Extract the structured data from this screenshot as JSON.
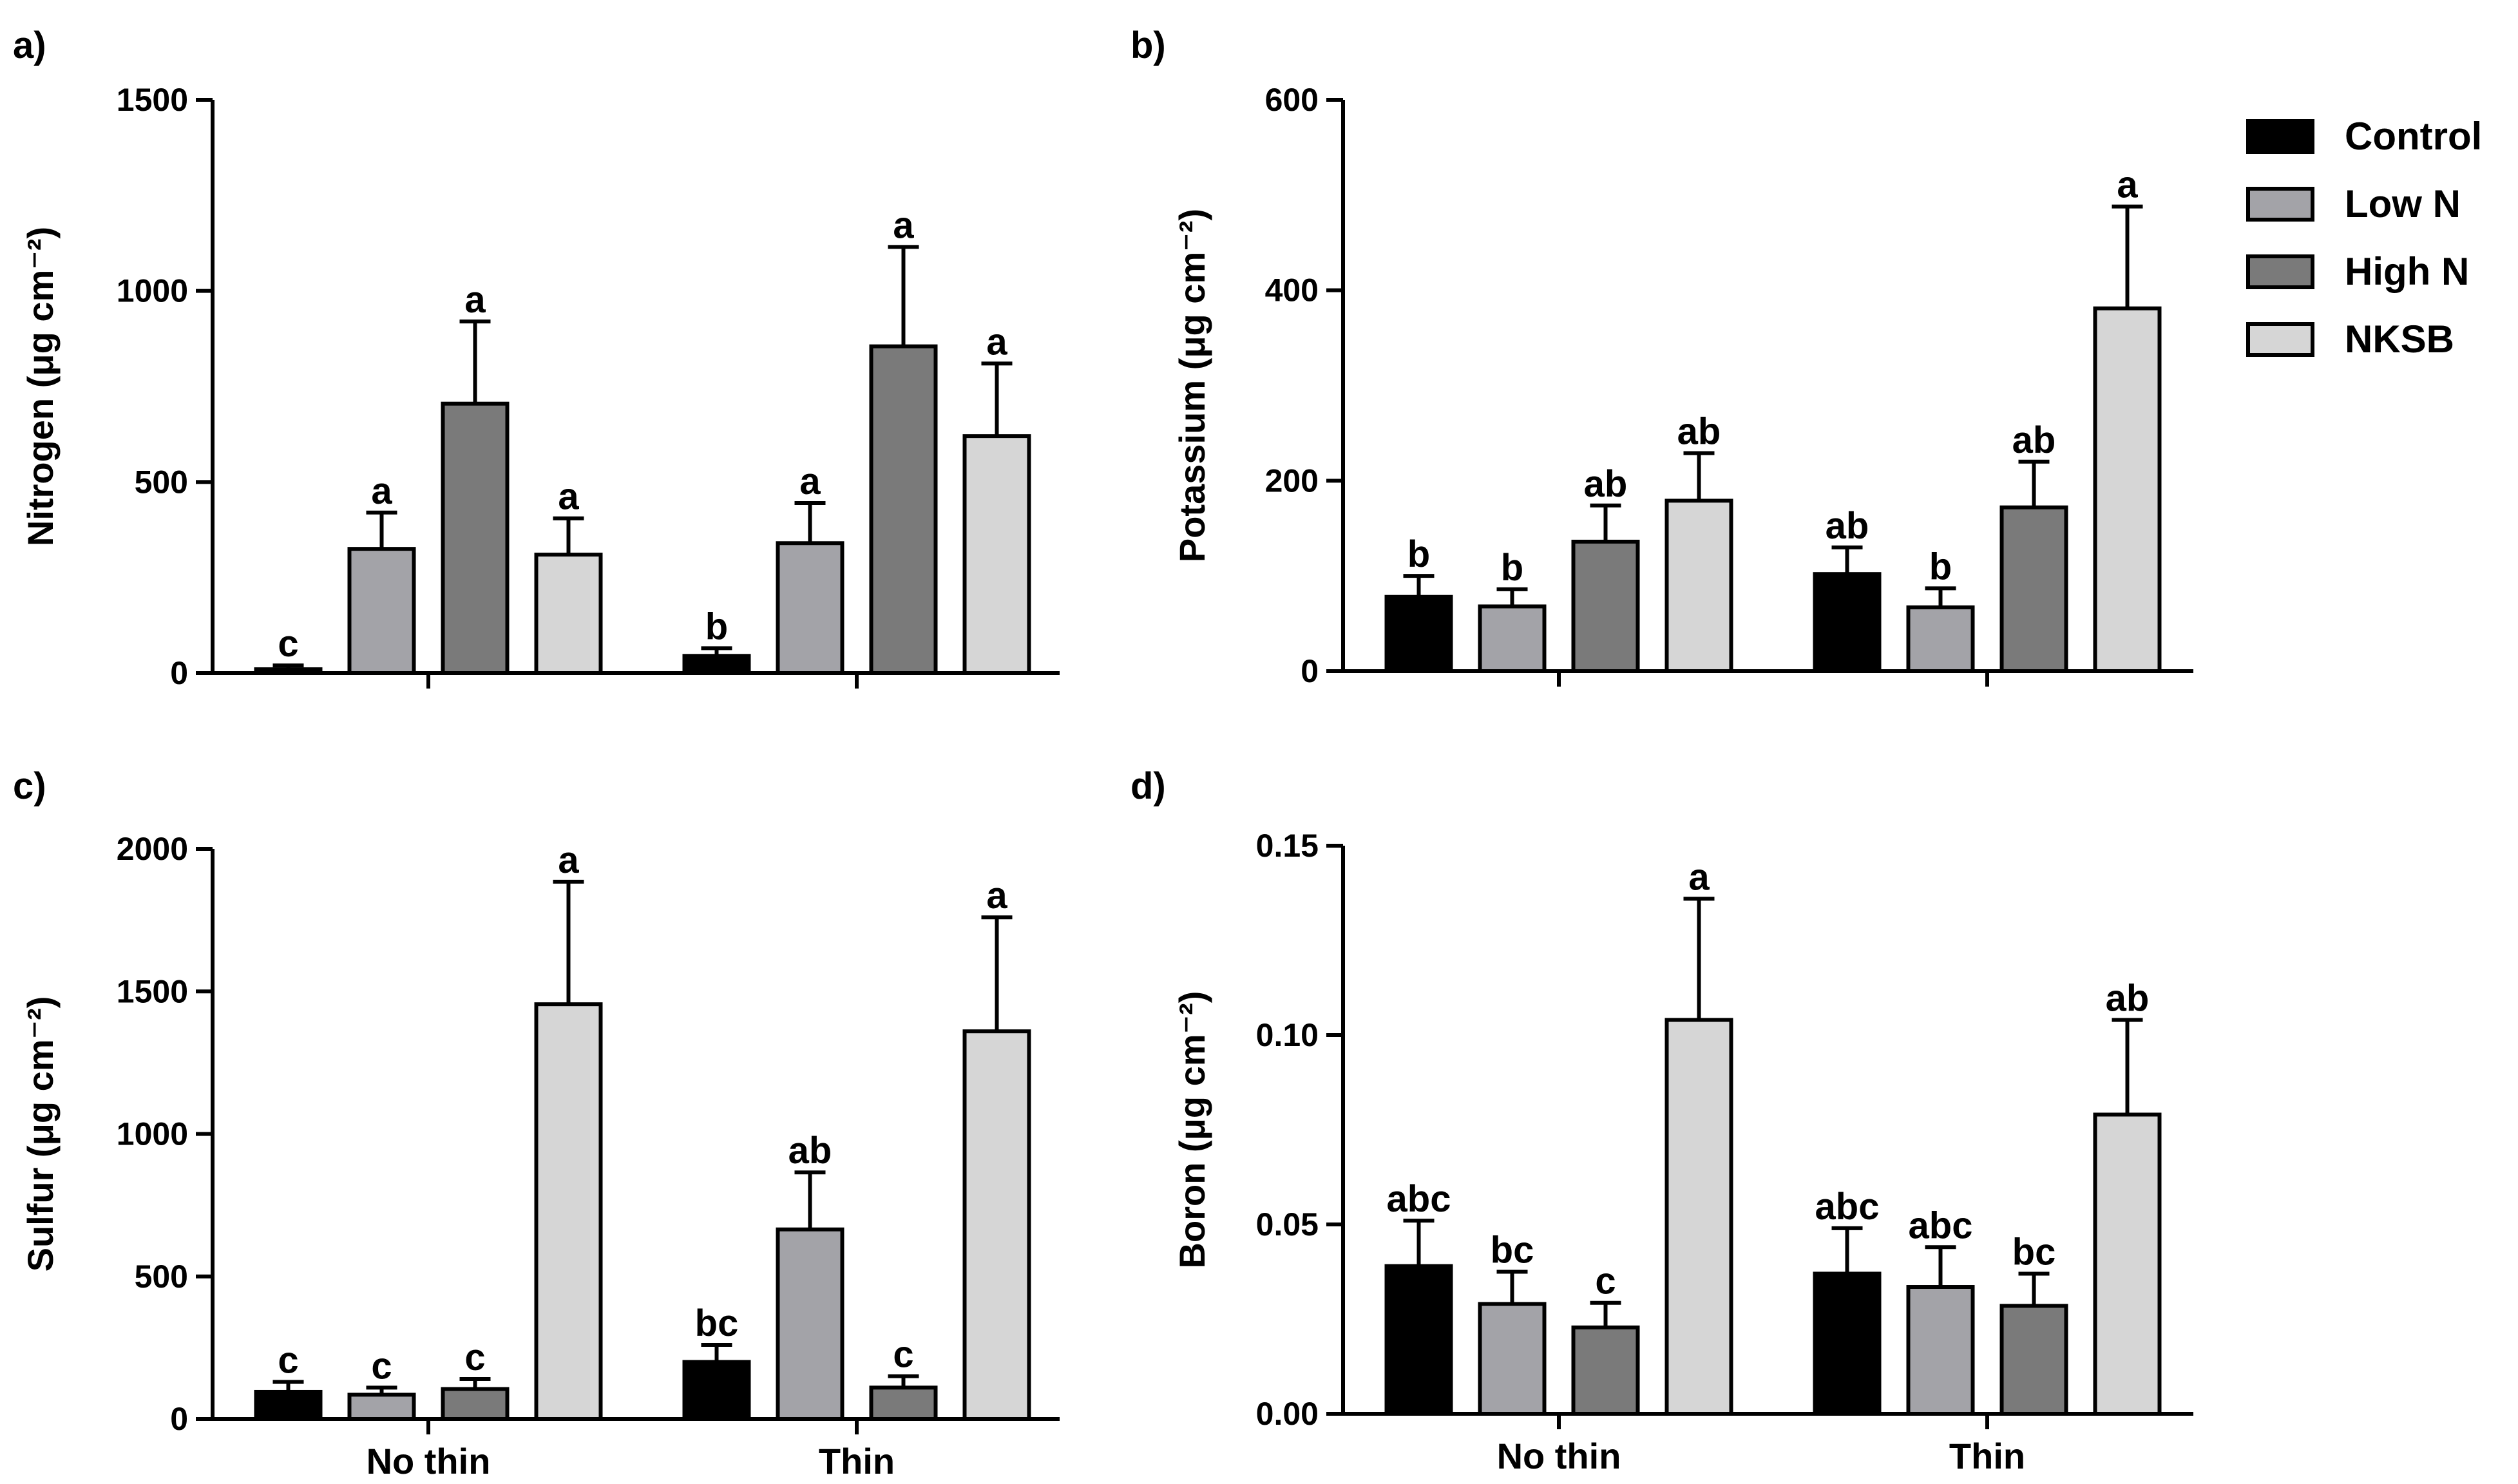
{
  "figure": {
    "groups": [
      "No thin",
      "Thin"
    ],
    "legend": [
      {
        "label": "Control",
        "color": "#000000"
      },
      {
        "label": "Low N",
        "color": "#a3a3a8"
      },
      {
        "label": "High N",
        "color": "#7a7a7a"
      },
      {
        "label": "NKSB",
        "color": "#d6d6d6"
      }
    ]
  },
  "chart_data": [
    {
      "panel": "a)",
      "type": "bar",
      "ylabel": "Nitrogen (μg cm⁻²)",
      "ylim": [
        0,
        1500
      ],
      "yticks": [
        "0",
        "500",
        "1000",
        "1500"
      ],
      "categories": [
        "No thin",
        "Thin"
      ],
      "show_xlabels": false,
      "series": [
        {
          "name": "Control",
          "values": [
            10,
            45
          ],
          "errors": [
            10,
            20
          ],
          "letters": [
            "c",
            "b"
          ]
        },
        {
          "name": "Low N",
          "values": [
            325,
            340
          ],
          "errors": [
            95,
            105
          ],
          "letters": [
            "a",
            "a"
          ]
        },
        {
          "name": "High N",
          "values": [
            705,
            855
          ],
          "errors": [
            215,
            260
          ],
          "letters": [
            "a",
            "a"
          ]
        },
        {
          "name": "NKSB",
          "values": [
            310,
            620
          ],
          "errors": [
            95,
            190
          ],
          "letters": [
            "a",
            "a"
          ]
        }
      ]
    },
    {
      "panel": "b)",
      "type": "bar",
      "ylabel": "Potassium (μg cm⁻²)",
      "ylim": [
        0,
        600
      ],
      "yticks": [
        "0",
        "200",
        "400",
        "600"
      ],
      "categories": [
        "No thin",
        "Thin"
      ],
      "show_xlabels": false,
      "series": [
        {
          "name": "Control",
          "values": [
            78,
            102
          ],
          "errors": [
            22,
            28
          ],
          "letters": [
            "b",
            "ab"
          ]
        },
        {
          "name": "Low N",
          "values": [
            68,
            67
          ],
          "errors": [
            18,
            20
          ],
          "letters": [
            "b",
            "b"
          ]
        },
        {
          "name": "High N",
          "values": [
            136,
            172
          ],
          "errors": [
            38,
            48
          ],
          "letters": [
            "ab",
            "ab"
          ]
        },
        {
          "name": "NKSB",
          "values": [
            179,
            381
          ],
          "errors": [
            50,
            107
          ],
          "letters": [
            "ab",
            "a"
          ]
        }
      ]
    },
    {
      "panel": "c)",
      "type": "bar",
      "ylabel": "Sulfur (μg cm⁻²)",
      "ylim": [
        0,
        2000
      ],
      "yticks": [
        "0",
        "500",
        "1000",
        "1500",
        "2000"
      ],
      "categories": [
        "No thin",
        "Thin"
      ],
      "show_xlabels": true,
      "series": [
        {
          "name": "Control",
          "values": [
            95,
            200
          ],
          "errors": [
            35,
            60
          ],
          "letters": [
            "c",
            "bc"
          ]
        },
        {
          "name": "Low N",
          "values": [
            85,
            665
          ],
          "errors": [
            25,
            200
          ],
          "letters": [
            "c",
            "ab"
          ]
        },
        {
          "name": "High N",
          "values": [
            105,
            110
          ],
          "errors": [
            35,
            40
          ],
          "letters": [
            "c",
            "c"
          ]
        },
        {
          "name": "NKSB",
          "values": [
            1455,
            1360
          ],
          "errors": [
            430,
            400
          ],
          "letters": [
            "a",
            "a"
          ]
        }
      ]
    },
    {
      "panel": "d)",
      "type": "bar",
      "ylabel": "Boron (μg cm⁻²)",
      "ylim": [
        0,
        0.15
      ],
      "yticks": [
        "0.00",
        "0.05",
        "0.10",
        "0.15"
      ],
      "categories": [
        "No thin",
        "Thin"
      ],
      "show_xlabels": true,
      "series": [
        {
          "name": "Control",
          "values": [
            0.039,
            0.037
          ],
          "errors": [
            0.012,
            0.012
          ],
          "letters": [
            "abc",
            "abc"
          ]
        },
        {
          "name": "Low N",
          "values": [
            0.029,
            0.0335
          ],
          "errors": [
            0.0085,
            0.0105
          ],
          "letters": [
            "bc",
            "abc"
          ]
        },
        {
          "name": "High N",
          "values": [
            0.0228,
            0.0285
          ],
          "errors": [
            0.0065,
            0.0085
          ],
          "letters": [
            "c",
            "bc"
          ]
        },
        {
          "name": "NKSB",
          "values": [
            0.104,
            0.079
          ],
          "errors": [
            0.032,
            0.025
          ],
          "letters": [
            "a",
            "ab"
          ]
        }
      ]
    }
  ]
}
